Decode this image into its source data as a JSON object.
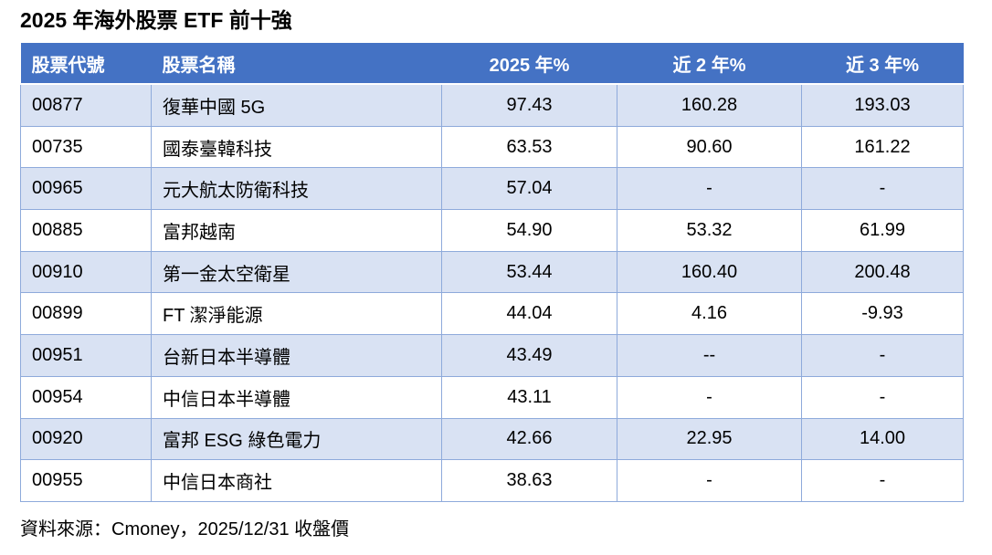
{
  "title": "2025 年海外股票 ETF 前十強",
  "source_note": "資料來源：Cmoney，2025/12/31 收盤價",
  "colors": {
    "header_bg": "#4472C4",
    "header_text": "#FFFFFF",
    "band_row_bg": "#D9E2F3",
    "plain_row_bg": "#FFFFFF",
    "grid_border": "#8EAADB",
    "body_text": "#000000"
  },
  "chart_data": {
    "type": "table",
    "title": "2025 年海外股票 ETF 前十強",
    "columns": [
      {
        "key": "code",
        "label": "股票代號"
      },
      {
        "key": "name",
        "label": "股票名稱"
      },
      {
        "key": "return-2025",
        "label": "2025 年%"
      },
      {
        "key": "return-2y",
        "label": "近 2 年%"
      },
      {
        "key": "return-3y",
        "label": "近 3 年%"
      }
    ],
    "rows": [
      [
        "00877",
        "復華中國 5G",
        "97.43",
        "160.28",
        "193.03"
      ],
      [
        "00735",
        "國泰臺韓科技",
        "63.53",
        "90.60",
        "161.22"
      ],
      [
        "00965",
        "元大航太防衛科技",
        "57.04",
        "-",
        "-"
      ],
      [
        "00885",
        "富邦越南",
        "54.90",
        "53.32",
        "61.99"
      ],
      [
        "00910",
        "第一金太空衛星",
        "53.44",
        "160.40",
        "200.48"
      ],
      [
        "00899",
        "FT 潔淨能源",
        "44.04",
        "4.16",
        "-9.93"
      ],
      [
        "00951",
        "台新日本半導體",
        "43.49",
        "--",
        "-"
      ],
      [
        "00954",
        "中信日本半導體",
        "43.11",
        "-",
        "-"
      ],
      [
        "00920",
        "富邦 ESG 綠色電力",
        "42.66",
        "22.95",
        "14.00"
      ],
      [
        "00955",
        "中信日本商社",
        "38.63",
        "-",
        "-"
      ]
    ],
    "source_note": "資料來源：Cmoney，2025/12/31 收盤價"
  }
}
